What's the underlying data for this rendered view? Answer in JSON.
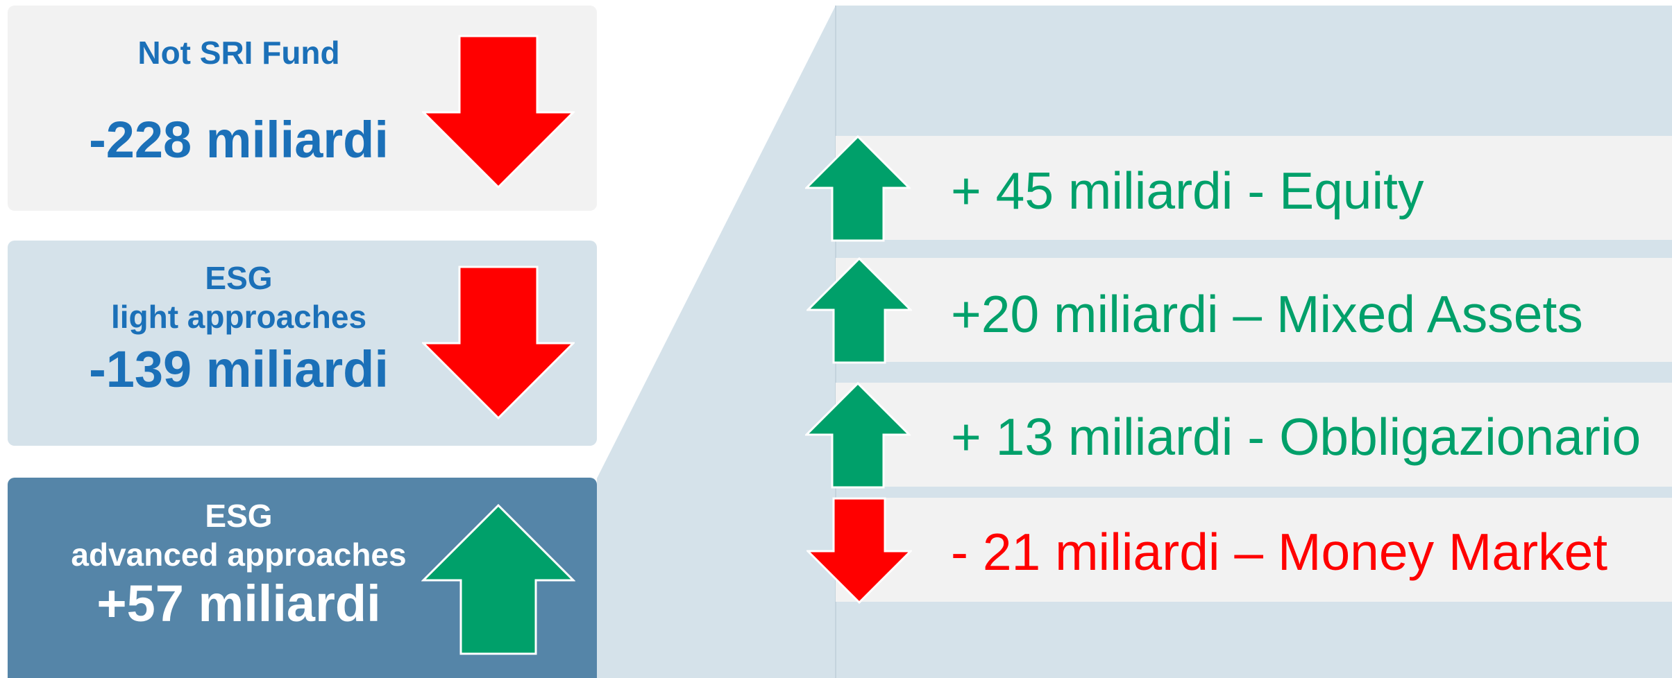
{
  "colors": {
    "blue_text": "#1b70b8",
    "white_text": "#ffffff",
    "green": "#00a06a",
    "red": "#ff0000",
    "box_light": "#f2f2f2",
    "box_mid": "#d5e2ea",
    "box_dark": "#5585a8",
    "panel": "#d5e2ea"
  },
  "boxes": [
    {
      "title_lines": [
        "Not SRI Fund"
      ],
      "value": "-228 miliardi",
      "arrow": "down-arrow-icon"
    },
    {
      "title_lines": [
        "ESG",
        "light approaches"
      ],
      "value": "-139 miliardi",
      "arrow": "down-arrow-icon"
    },
    {
      "title_lines": [
        "ESG",
        "advanced approaches"
      ],
      "value": "+57 miliardi",
      "arrow": "up-arrow-icon"
    }
  ],
  "breakdown": [
    {
      "label": "+ 45 miliardi - Equity",
      "direction": "up"
    },
    {
      "label": "+20 miliardi – Mixed Assets",
      "direction": "up"
    },
    {
      "label": "+ 13 miliardi - Obbligazionario",
      "direction": "up"
    },
    {
      "label": "- 21 miliardi – Money Market",
      "direction": "down"
    }
  ]
}
